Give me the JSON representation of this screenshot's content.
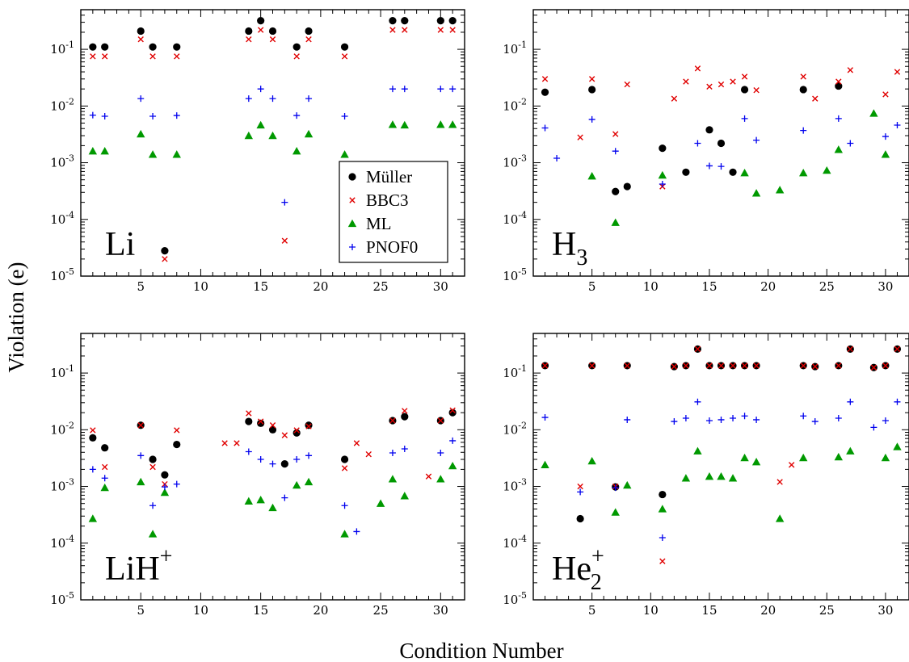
{
  "figure": {
    "ylabel": "Violation (e)",
    "xlabel": "Condition Number",
    "legend_position": "bottom-right of panel Li",
    "xlim": [
      0,
      32
    ],
    "ylim": [
      1e-05,
      0.5
    ],
    "y_scale": "log",
    "x_ticks": [
      5,
      10,
      15,
      20,
      25,
      30
    ],
    "y_ticks": [
      {
        "value": 1e-05,
        "base": "10",
        "exp": "-5"
      },
      {
        "value": 0.0001,
        "base": "10",
        "exp": "-4"
      },
      {
        "value": 0.001,
        "base": "10",
        "exp": "-3"
      },
      {
        "value": 0.01,
        "base": "10",
        "exp": "-2"
      },
      {
        "value": 0.1,
        "base": "10",
        "exp": "-1"
      }
    ]
  },
  "series_style": [
    {
      "name": "Müller",
      "marker": "circle",
      "color": "#000000"
    },
    {
      "name": "BBC3",
      "marker": "x",
      "color": "#e00000"
    },
    {
      "name": "ML",
      "marker": "triangle",
      "color": "#009900"
    },
    {
      "name": "PNOF0",
      "marker": "plus",
      "color": "#0000ee"
    }
  ],
  "chart_data": [
    {
      "type": "scatter",
      "label": {
        "main": "Li",
        "sub": "",
        "sup": ""
      },
      "show_legend": true,
      "series": [
        {
          "name": "Müller",
          "x": [
            1,
            2,
            5,
            6,
            7,
            8,
            14,
            15,
            16,
            18,
            19,
            22,
            26,
            27,
            30,
            31
          ],
          "y": [
            0.11,
            0.11,
            0.21,
            0.11,
            2.8e-05,
            0.11,
            0.21,
            0.32,
            0.21,
            0.11,
            0.21,
            0.11,
            0.32,
            0.32,
            0.32,
            0.32
          ]
        },
        {
          "name": "BBC3",
          "x": [
            1,
            2,
            5,
            6,
            7,
            8,
            14,
            15,
            16,
            17,
            18,
            19,
            22,
            26,
            27,
            30,
            31
          ],
          "y": [
            0.075,
            0.075,
            0.15,
            0.075,
            2e-05,
            0.075,
            0.15,
            0.22,
            0.15,
            4.2e-05,
            0.075,
            0.15,
            0.075,
            0.22,
            0.22,
            0.22,
            0.22
          ]
        },
        {
          "name": "ML",
          "x": [
            1,
            2,
            5,
            6,
            8,
            14,
            15,
            16,
            18,
            19,
            22,
            26,
            27,
            30,
            31
          ],
          "y": [
            0.0016,
            0.0016,
            0.0032,
            0.0014,
            0.0014,
            0.003,
            0.0046,
            0.003,
            0.0016,
            0.0032,
            0.0014,
            0.0047,
            0.0046,
            0.0047,
            0.0047
          ]
        },
        {
          "name": "PNOF0",
          "x": [
            1,
            2,
            5,
            6,
            8,
            14,
            15,
            16,
            17,
            18,
            19,
            22,
            26,
            27,
            30,
            31
          ],
          "y": [
            0.0069,
            0.0066,
            0.0135,
            0.0066,
            0.0068,
            0.0135,
            0.02,
            0.0135,
            0.0002,
            0.0068,
            0.0135,
            0.0066,
            0.02,
            0.02,
            0.02,
            0.02
          ]
        }
      ]
    },
    {
      "type": "scatter",
      "label": {
        "main": "H",
        "sub": "3",
        "sup": ""
      },
      "show_legend": false,
      "series": [
        {
          "name": "Müller",
          "x": [
            1,
            5,
            7,
            8,
            11,
            13,
            15,
            16,
            17,
            18,
            23,
            26
          ],
          "y": [
            0.0175,
            0.0195,
            0.00031,
            0.00038,
            0.0018,
            0.00068,
            0.0038,
            0.0022,
            0.00068,
            0.0195,
            0.0195,
            0.0225
          ]
        },
        {
          "name": "BBC3",
          "x": [
            1,
            4,
            5,
            7,
            8,
            11,
            12,
            13,
            14,
            15,
            16,
            17,
            18,
            19,
            23,
            24,
            26,
            27,
            30,
            31
          ],
          "y": [
            0.03,
            0.0028,
            0.03,
            0.0032,
            0.024,
            0.00038,
            0.0135,
            0.027,
            0.046,
            0.022,
            0.024,
            0.027,
            0.033,
            0.019,
            0.033,
            0.0135,
            0.027,
            0.043,
            0.016,
            0.04
          ]
        },
        {
          "name": "ML",
          "x": [
            5,
            7,
            11,
            18,
            19,
            21,
            23,
            25,
            26,
            29,
            30
          ],
          "y": [
            0.00058,
            8.8e-05,
            0.0006,
            0.00066,
            0.00029,
            0.00033,
            0.00066,
            0.00073,
            0.0017,
            0.0074,
            0.0014
          ]
        },
        {
          "name": "PNOF0",
          "x": [
            1,
            2,
            5,
            7,
            11,
            14,
            15,
            16,
            18,
            19,
            23,
            26,
            27,
            30,
            31
          ],
          "y": [
            0.0041,
            0.0012,
            0.0058,
            0.0016,
            0.00042,
            0.0022,
            0.00088,
            0.00086,
            0.006,
            0.0025,
            0.0037,
            0.006,
            0.0022,
            0.0029,
            0.0046
          ]
        }
      ]
    },
    {
      "type": "scatter",
      "label": {
        "main": "LiH",
        "sub": "",
        "sup": "+"
      },
      "show_legend": false,
      "series": [
        {
          "name": "Müller",
          "x": [
            1,
            2,
            5,
            6,
            7,
            8,
            14,
            15,
            16,
            17,
            18,
            19,
            22,
            26,
            27,
            30,
            31
          ],
          "y": [
            0.0072,
            0.0048,
            0.012,
            0.003,
            0.0016,
            0.0055,
            0.014,
            0.013,
            0.01,
            0.0025,
            0.0088,
            0.012,
            0.003,
            0.0145,
            0.017,
            0.0145,
            0.02
          ]
        },
        {
          "name": "BBC3",
          "x": [
            1,
            2,
            5,
            6,
            7,
            8,
            12,
            13,
            14,
            15,
            16,
            17,
            18,
            19,
            22,
            23,
            24,
            26,
            27,
            29,
            30,
            31
          ],
          "y": [
            0.0098,
            0.0022,
            0.012,
            0.0022,
            0.0011,
            0.0098,
            0.0058,
            0.0058,
            0.0195,
            0.014,
            0.012,
            0.008,
            0.0098,
            0.0115,
            0.0021,
            0.0058,
            0.0037,
            0.0145,
            0.0215,
            0.0015,
            0.0145,
            0.022
          ]
        },
        {
          "name": "ML",
          "x": [
            1,
            2,
            5,
            6,
            7,
            14,
            15,
            16,
            18,
            19,
            22,
            25,
            26,
            27,
            30,
            31
          ],
          "y": [
            0.00027,
            0.00095,
            0.0012,
            0.000145,
            0.00078,
            0.00055,
            0.00058,
            0.00042,
            0.00105,
            0.0012,
            0.000145,
            0.0005,
            0.00135,
            0.00068,
            0.00135,
            0.0023
          ]
        },
        {
          "name": "PNOF0",
          "x": [
            1,
            2,
            5,
            6,
            7,
            8,
            14,
            15,
            16,
            17,
            18,
            19,
            22,
            23,
            26,
            27,
            30,
            31
          ],
          "y": [
            0.002,
            0.0014,
            0.0035,
            0.00046,
            0.00098,
            0.0011,
            0.0041,
            0.003,
            0.0025,
            0.00063,
            0.003,
            0.0035,
            0.00046,
            0.00016,
            0.0039,
            0.0046,
            0.0039,
            0.0064
          ]
        }
      ]
    },
    {
      "type": "scatter",
      "label": {
        "main": "He",
        "sub": "2",
        "sup": "+"
      },
      "show_legend": false,
      "series": [
        {
          "name": "Müller",
          "x": [
            1,
            4,
            5,
            7,
            8,
            11,
            12,
            13,
            14,
            15,
            16,
            17,
            18,
            19,
            23,
            24,
            26,
            27,
            29,
            30,
            31
          ],
          "y": [
            0.135,
            0.00027,
            0.135,
            0.00098,
            0.135,
            0.00072,
            0.13,
            0.135,
            0.265,
            0.135,
            0.135,
            0.135,
            0.135,
            0.135,
            0.135,
            0.13,
            0.135,
            0.265,
            0.125,
            0.135,
            0.265
          ]
        },
        {
          "name": "BBC3",
          "x": [
            1,
            4,
            5,
            7,
            8,
            11,
            12,
            13,
            14,
            15,
            16,
            17,
            18,
            19,
            21,
            22,
            23,
            24,
            26,
            27,
            29,
            30,
            31
          ],
          "y": [
            0.135,
            0.001,
            0.135,
            0.001,
            0.135,
            4.8e-05,
            0.13,
            0.135,
            0.265,
            0.135,
            0.135,
            0.135,
            0.135,
            0.135,
            0.0012,
            0.0024,
            0.135,
            0.13,
            0.135,
            0.265,
            0.125,
            0.135,
            0.265
          ]
        },
        {
          "name": "ML",
          "x": [
            1,
            5,
            7,
            8,
            11,
            13,
            14,
            15,
            16,
            17,
            18,
            19,
            21,
            23,
            26,
            27,
            30,
            31
          ],
          "y": [
            0.0024,
            0.0028,
            0.00035,
            0.00105,
            0.0004,
            0.0014,
            0.0042,
            0.0015,
            0.0015,
            0.0014,
            0.0032,
            0.0027,
            0.00027,
            0.0032,
            0.0033,
            0.0042,
            0.0032,
            0.005
          ]
        },
        {
          "name": "PNOF0",
          "x": [
            1,
            4,
            7,
            8,
            11,
            12,
            13,
            14,
            15,
            16,
            17,
            18,
            19,
            23,
            24,
            26,
            27,
            29,
            30,
            31
          ],
          "y": [
            0.0165,
            0.0008,
            0.00095,
            0.015,
            0.000125,
            0.014,
            0.016,
            0.031,
            0.0145,
            0.015,
            0.016,
            0.0175,
            0.015,
            0.0175,
            0.014,
            0.016,
            0.031,
            0.011,
            0.0145,
            0.031
          ]
        }
      ]
    }
  ]
}
